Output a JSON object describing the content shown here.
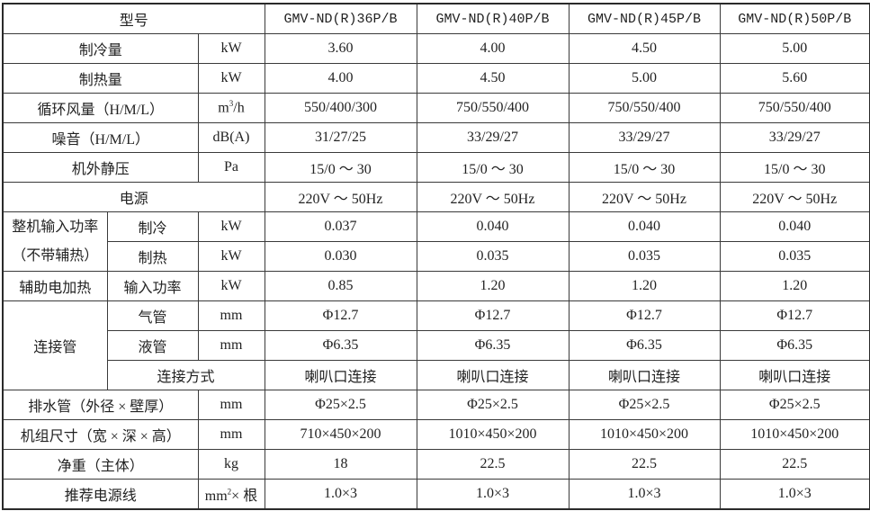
{
  "header": {
    "label": "型号",
    "models": [
      "GMV-ND(R)36P/B",
      "GMV-ND(R)40P/B",
      "GMV-ND(R)45P/B",
      "GMV-ND(R)50P/B"
    ]
  },
  "rows": {
    "cooling_capacity": {
      "label": "制冷量",
      "unit": "kW",
      "values": [
        "3.60",
        "4.00",
        "4.50",
        "5.00"
      ]
    },
    "heating_capacity": {
      "label": "制热量",
      "unit": "kW",
      "values": [
        "4.00",
        "4.50",
        "5.00",
        "5.60"
      ]
    },
    "airflow": {
      "label": "循环风量（H/M/L）",
      "unit_base": "m",
      "unit_sup": "3",
      "unit_rest": "/h",
      "values": [
        "550/400/300",
        "750/550/400",
        "750/550/400",
        "750/550/400"
      ]
    },
    "noise": {
      "label": "噪音（H/M/L）",
      "unit": "dB(A)",
      "values": [
        "31/27/25",
        "33/29/27",
        "33/29/27",
        "33/29/27"
      ]
    },
    "static_pressure": {
      "label": "机外静压",
      "unit": "Pa",
      "values": [
        "15/0 ～ 30",
        "15/0 ～ 30",
        "15/0 ～ 30",
        "15/0 ～ 30"
      ]
    },
    "power_supply": {
      "label": "电源",
      "values": [
        "220V ～ 50Hz",
        "220V ～ 50Hz",
        "220V ～ 50Hz",
        "220V ～ 50Hz"
      ]
    },
    "input_power": {
      "label": "整机输入功率（不带辅热）",
      "cooling": {
        "label": "制冷",
        "unit": "kW",
        "values": [
          "0.037",
          "0.040",
          "0.040",
          "0.040"
        ]
      },
      "heating": {
        "label": "制热",
        "unit": "kW",
        "values": [
          "0.030",
          "0.035",
          "0.035",
          "0.035"
        ]
      }
    },
    "aux_heater": {
      "label": "辅助电加热",
      "sub": "输入功率",
      "unit": "kW",
      "values": [
        "0.85",
        "1.20",
        "1.20",
        "1.20"
      ]
    },
    "pipes": {
      "label": "连接管",
      "gas": {
        "label": "气管",
        "unit": "mm",
        "values": [
          "Φ12.7",
          "Φ12.7",
          "Φ12.7",
          "Φ12.7"
        ]
      },
      "liquid": {
        "label": "液管",
        "unit": "mm",
        "values": [
          "Φ6.35",
          "Φ6.35",
          "Φ6.35",
          "Φ6.35"
        ]
      },
      "connection": {
        "label": "连接方式",
        "values": [
          "喇叭口连接",
          "喇叭口连接",
          "喇叭口连接",
          "喇叭口连接"
        ]
      }
    },
    "drain": {
      "label": "排水管（外径 × 壁厚）",
      "unit": "mm",
      "values": [
        "Φ25×2.5",
        "Φ25×2.5",
        "Φ25×2.5",
        "Φ25×2.5"
      ]
    },
    "dimensions": {
      "label": "机组尺寸（宽 × 深 × 高）",
      "unit": "mm",
      "values": [
        "710×450×200",
        "1010×450×200",
        "1010×450×200",
        "1010×450×200"
      ]
    },
    "weight": {
      "label": "净重（主体）",
      "unit": "kg",
      "values": [
        "18",
        "22.5",
        "22.5",
        "22.5"
      ]
    },
    "cable": {
      "label": "推荐电源线",
      "unit_base": "mm",
      "unit_sup": "2",
      "unit_rest": "× 根",
      "values": [
        "1.0×3",
        "1.0×3",
        "1.0×3",
        "1.0×3"
      ]
    }
  }
}
